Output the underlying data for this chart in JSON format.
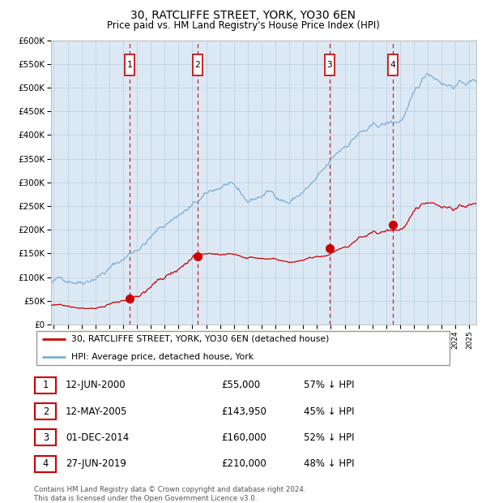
{
  "title": "30, RATCLIFFE STREET, YORK, YO30 6EN",
  "subtitle": "Price paid vs. HM Land Registry's House Price Index (HPI)",
  "ylim": [
    0,
    600000
  ],
  "yticks": [
    0,
    50000,
    100000,
    150000,
    200000,
    250000,
    300000,
    350000,
    400000,
    450000,
    500000,
    550000,
    600000
  ],
  "xlim_start": 1994.8,
  "xlim_end": 2025.5,
  "plot_bg_color": "#dce9f5",
  "grid_color": "#b8cfe0",
  "hpi_line_color": "#7aafd4",
  "price_line_color": "#cc0000",
  "sale_marker_color": "#cc0000",
  "dashed_line_color": "#cc0000",
  "sales": [
    {
      "date_num": 2000.45,
      "price": 55000,
      "label": "1",
      "date_str": "12-JUN-2000",
      "price_str": "£55,000",
      "pct_str": "57% ↓ HPI"
    },
    {
      "date_num": 2005.37,
      "price": 143950,
      "label": "2",
      "date_str": "12-MAY-2005",
      "price_str": "£143,950",
      "pct_str": "45% ↓ HPI"
    },
    {
      "date_num": 2014.92,
      "price": 160000,
      "label": "3",
      "date_str": "01-DEC-2014",
      "price_str": "£160,000",
      "pct_str": "52% ↓ HPI"
    },
    {
      "date_num": 2019.49,
      "price": 210000,
      "label": "4",
      "date_str": "27-JUN-2019",
      "price_str": "£210,000",
      "pct_str": "48% ↓ HPI"
    }
  ],
  "legend_line1": "30, RATCLIFFE STREET, YORK, YO30 6EN (detached house)",
  "legend_line2": "HPI: Average price, detached house, York",
  "footer_line1": "Contains HM Land Registry data © Crown copyright and database right 2024.",
  "footer_line2": "This data is licensed under the Open Government Licence v3.0.",
  "table_rows": [
    [
      "1",
      "12-JUN-2000",
      "£55,000",
      "57% ↓ HPI"
    ],
    [
      "2",
      "12-MAY-2005",
      "£143,950",
      "45% ↓ HPI"
    ],
    [
      "3",
      "01-DEC-2014",
      "£160,000",
      "52% ↓ HPI"
    ],
    [
      "4",
      "27-JUN-2019",
      "£210,000",
      "48% ↓ HPI"
    ]
  ]
}
